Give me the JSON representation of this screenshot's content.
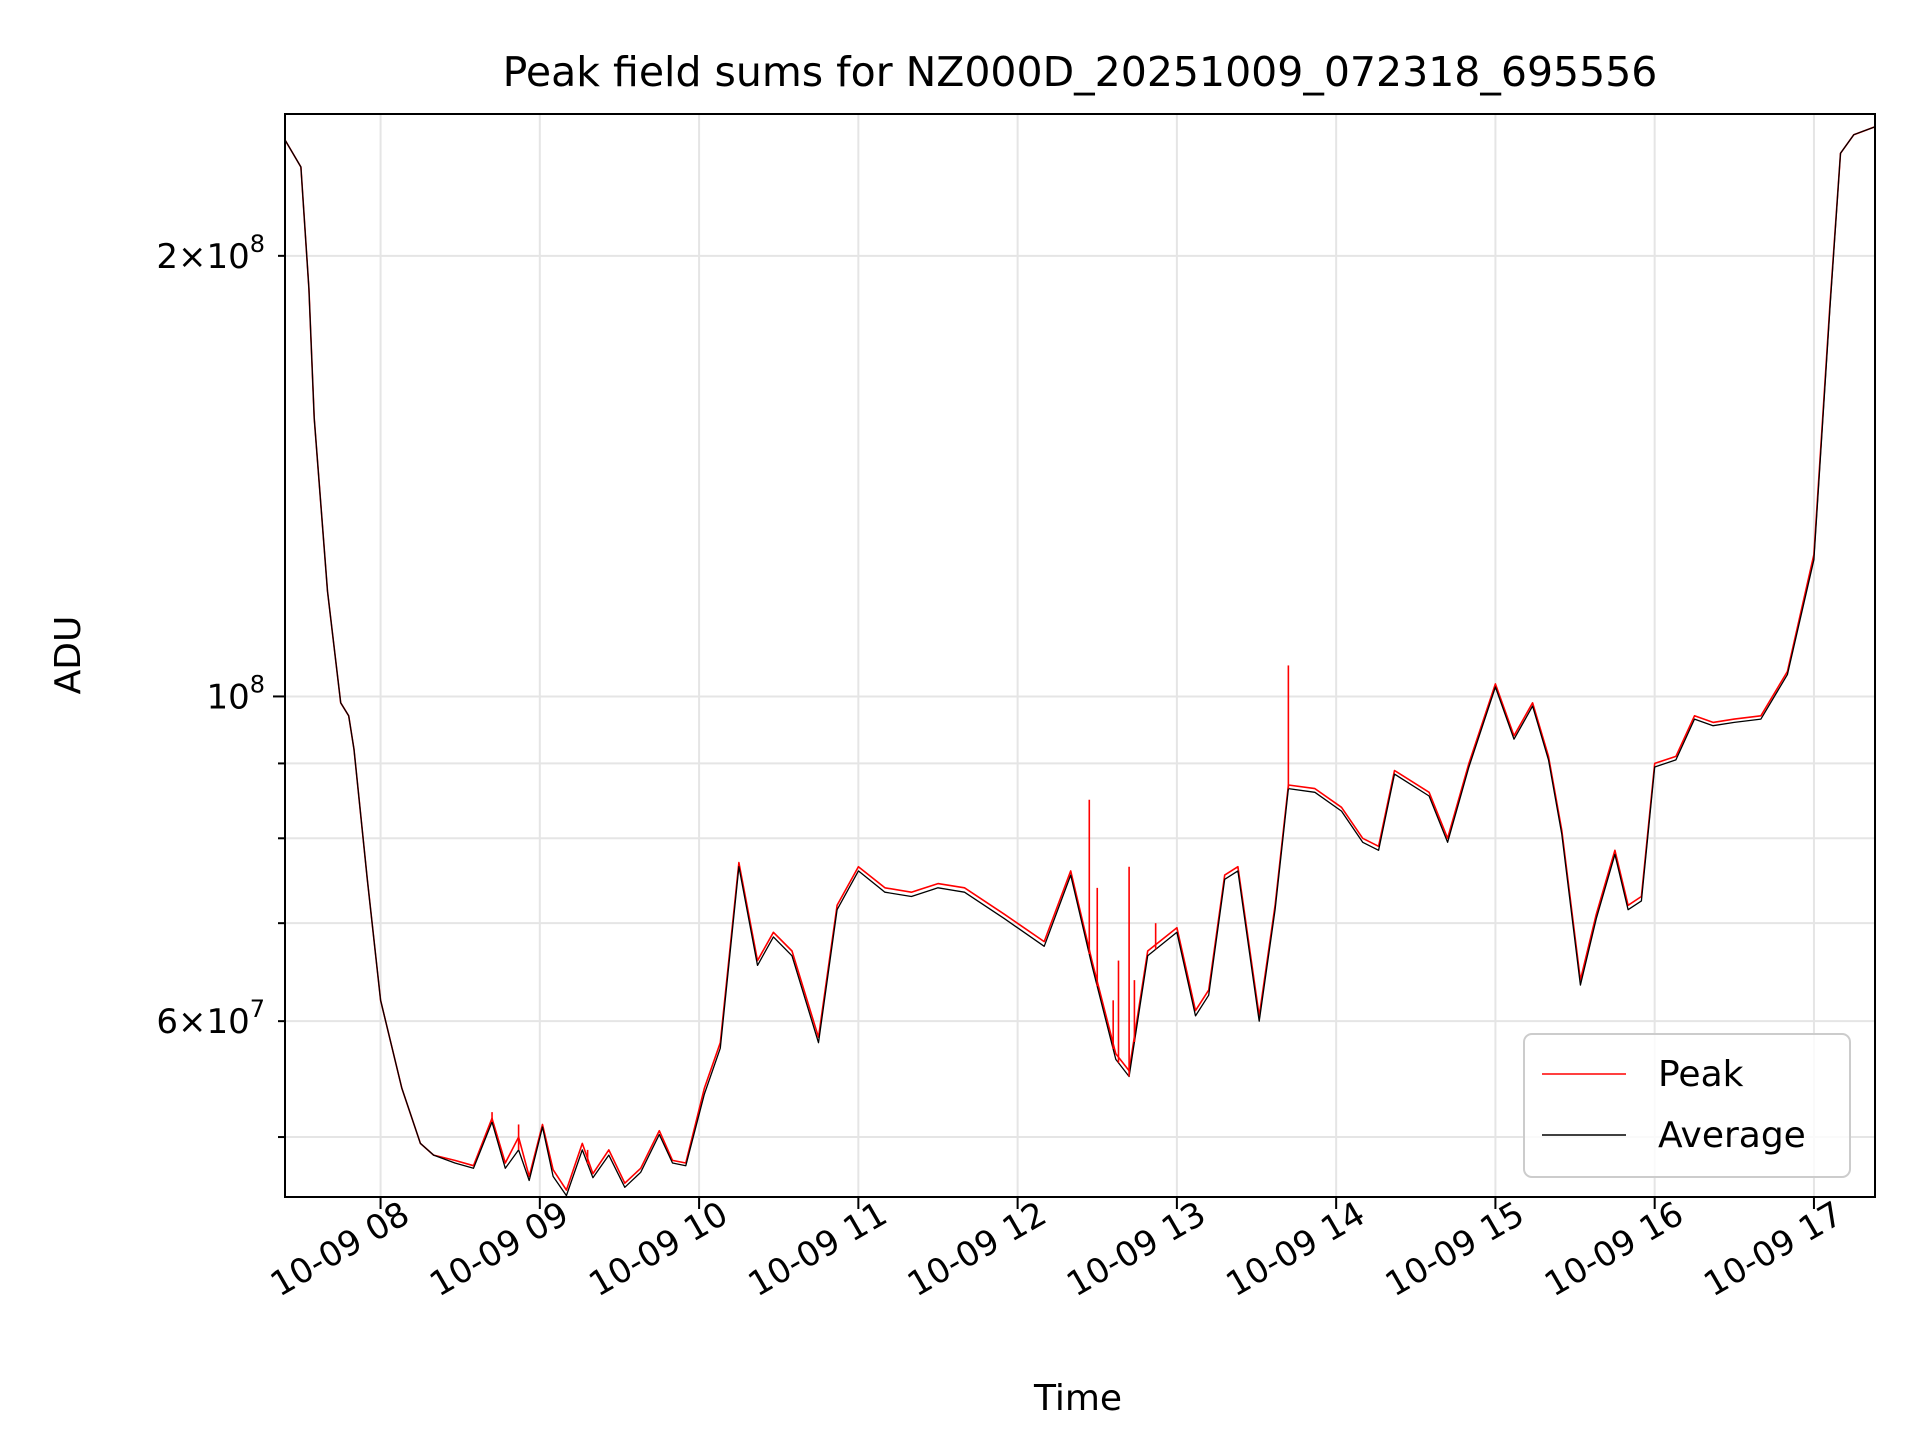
{
  "chart_data": {
    "type": "line",
    "title": "Peak field sums for NZ000D_20251009_072318_695556",
    "xlabel": "Time",
    "ylabel": "ADU",
    "yscale": "log",
    "xlim": [
      "2025-10-09T07:24",
      "2025-10-09T17:23"
    ],
    "ylim": [
      45500000,
      250000000
    ],
    "grid": true,
    "legend_position": "lower-right",
    "x_ticks": [
      {
        "t": "2025-10-09T08:00",
        "label": "10-09 08"
      },
      {
        "t": "2025-10-09T09:00",
        "label": "10-09 09"
      },
      {
        "t": "2025-10-09T10:00",
        "label": "10-09 10"
      },
      {
        "t": "2025-10-09T11:00",
        "label": "10-09 11"
      },
      {
        "t": "2025-10-09T12:00",
        "label": "10-09 12"
      },
      {
        "t": "2025-10-09T13:00",
        "label": "10-09 13"
      },
      {
        "t": "2025-10-09T14:00",
        "label": "10-09 14"
      },
      {
        "t": "2025-10-09T15:00",
        "label": "10-09 15"
      },
      {
        "t": "2025-10-09T16:00",
        "label": "10-09 16"
      },
      {
        "t": "2025-10-09T17:00",
        "label": "10-09 17"
      }
    ],
    "y_major_ticks": [
      {
        "value": 100000000,
        "mantissa": "",
        "exponent": "8"
      }
    ],
    "y_minor_ticks": [
      {
        "value": 50000000,
        "mantissa": "",
        "exponent": ""
      },
      {
        "value": 60000000,
        "mantissa": "6",
        "exponent": "7"
      },
      {
        "value": 70000000,
        "mantissa": "",
        "exponent": ""
      },
      {
        "value": 80000000,
        "mantissa": "",
        "exponent": ""
      },
      {
        "value": 90000000,
        "mantissa": "",
        "exponent": ""
      },
      {
        "value": 200000000,
        "mantissa": "2",
        "exponent": "8"
      }
    ],
    "series": [
      {
        "name": "Peak",
        "color": "#ff0000",
        "x": [
          "2025-10-09T07:24",
          "2025-10-09T07:30",
          "2025-10-09T07:33",
          "2025-10-09T07:35",
          "2025-10-09T07:40",
          "2025-10-09T07:45",
          "2025-10-09T07:48",
          "2025-10-09T07:50",
          "2025-10-09T07:55",
          "2025-10-09T08:00",
          "2025-10-09T08:08",
          "2025-10-09T08:15",
          "2025-10-09T08:20",
          "2025-10-09T08:28",
          "2025-10-09T08:35",
          "2025-10-09T08:42",
          "2025-10-09T08:47",
          "2025-10-09T08:52",
          "2025-10-09T08:56",
          "2025-10-09T09:01",
          "2025-10-09T09:05",
          "2025-10-09T09:10",
          "2025-10-09T09:16",
          "2025-10-09T09:20",
          "2025-10-09T09:26",
          "2025-10-09T09:32",
          "2025-10-09T09:38",
          "2025-10-09T09:45",
          "2025-10-09T09:50",
          "2025-10-09T09:55",
          "2025-10-09T10:02",
          "2025-10-09T10:08",
          "2025-10-09T10:15",
          "2025-10-09T10:22",
          "2025-10-09T10:28",
          "2025-10-09T10:35",
          "2025-10-09T10:45",
          "2025-10-09T10:52",
          "2025-10-09T11:00",
          "2025-10-09T11:10",
          "2025-10-09T11:20",
          "2025-10-09T11:30",
          "2025-10-09T11:40",
          "2025-10-09T11:55",
          "2025-10-09T12:10",
          "2025-10-09T12:20",
          "2025-10-09T12:28",
          "2025-10-09T12:37",
          "2025-10-09T12:42",
          "2025-10-09T12:49",
          "2025-10-09T13:00",
          "2025-10-09T13:07",
          "2025-10-09T13:12",
          "2025-10-09T13:18",
          "2025-10-09T13:23",
          "2025-10-09T13:31",
          "2025-10-09T13:37",
          "2025-10-09T13:42",
          "2025-10-09T13:52",
          "2025-10-09T14:02",
          "2025-10-09T14:10",
          "2025-10-09T14:16",
          "2025-10-09T14:22",
          "2025-10-09T14:35",
          "2025-10-09T14:42",
          "2025-10-09T14:50",
          "2025-10-09T15:00",
          "2025-10-09T15:07",
          "2025-10-09T15:14",
          "2025-10-09T15:20",
          "2025-10-09T15:25",
          "2025-10-09T15:32",
          "2025-10-09T15:38",
          "2025-10-09T15:45",
          "2025-10-09T15:50",
          "2025-10-09T15:55",
          "2025-10-09T16:00",
          "2025-10-09T16:08",
          "2025-10-09T16:15",
          "2025-10-09T16:22",
          "2025-10-09T16:30",
          "2025-10-09T16:40",
          "2025-10-09T16:50",
          "2025-10-09T17:00",
          "2025-10-09T17:06",
          "2025-10-09T17:10",
          "2025-10-09T17:15",
          "2025-10-09T17:23"
        ],
        "values": [
          240000000,
          230000000,
          190000000,
          155000000,
          118000000,
          99000000,
          97000000,
          92000000,
          75000000,
          62000000,
          54000000,
          49500000,
          48600000,
          48200000,
          47800000,
          51500000,
          48000000,
          50000000,
          47000000,
          51000000,
          47500000,
          46000000,
          49500000,
          47200000,
          49000000,
          46500000,
          47600000,
          50500000,
          48200000,
          48000000,
          54000000,
          58000000,
          77000000,
          66000000,
          69000000,
          67000000,
          58500000,
          72000000,
          76500000,
          74000000,
          73500000,
          74500000,
          74000000,
          71000000,
          68000000,
          76000000,
          66000000,
          57000000,
          55500000,
          67000000,
          69500000,
          61000000,
          63000000,
          75500000,
          76500000,
          60500000,
          72000000,
          87000000,
          86500000,
          84000000,
          80000000,
          79000000,
          89000000,
          86000000,
          80000000,
          90000000,
          102000000,
          94000000,
          99000000,
          91000000,
          81000000,
          64000000,
          71000000,
          78500000,
          72000000,
          73000000,
          90000000,
          91000000,
          97000000,
          96000000,
          96500000,
          97000000,
          104000000,
          125000000,
          185000000,
          235000000,
          242000000,
          245000000
        ]
      },
      {
        "name": "Average",
        "color": "#000000",
        "x": [
          "2025-10-09T07:24",
          "2025-10-09T07:30",
          "2025-10-09T07:33",
          "2025-10-09T07:35",
          "2025-10-09T07:40",
          "2025-10-09T07:45",
          "2025-10-09T07:48",
          "2025-10-09T07:50",
          "2025-10-09T07:55",
          "2025-10-09T08:00",
          "2025-10-09T08:08",
          "2025-10-09T08:15",
          "2025-10-09T08:20",
          "2025-10-09T08:28",
          "2025-10-09T08:35",
          "2025-10-09T08:42",
          "2025-10-09T08:47",
          "2025-10-09T08:52",
          "2025-10-09T08:56",
          "2025-10-09T09:01",
          "2025-10-09T09:05",
          "2025-10-09T09:10",
          "2025-10-09T09:16",
          "2025-10-09T09:20",
          "2025-10-09T09:26",
          "2025-10-09T09:32",
          "2025-10-09T09:38",
          "2025-10-09T09:45",
          "2025-10-09T09:50",
          "2025-10-09T09:55",
          "2025-10-09T10:02",
          "2025-10-09T10:08",
          "2025-10-09T10:15",
          "2025-10-09T10:22",
          "2025-10-09T10:28",
          "2025-10-09T10:35",
          "2025-10-09T10:45",
          "2025-10-09T10:52",
          "2025-10-09T11:00",
          "2025-10-09T11:10",
          "2025-10-09T11:20",
          "2025-10-09T11:30",
          "2025-10-09T11:40",
          "2025-10-09T11:55",
          "2025-10-09T12:10",
          "2025-10-09T12:20",
          "2025-10-09T12:28",
          "2025-10-09T12:37",
          "2025-10-09T12:42",
          "2025-10-09T12:49",
          "2025-10-09T13:00",
          "2025-10-09T13:07",
          "2025-10-09T13:12",
          "2025-10-09T13:18",
          "2025-10-09T13:23",
          "2025-10-09T13:31",
          "2025-10-09T13:37",
          "2025-10-09T13:42",
          "2025-10-09T13:52",
          "2025-10-09T14:02",
          "2025-10-09T14:10",
          "2025-10-09T14:16",
          "2025-10-09T14:22",
          "2025-10-09T14:35",
          "2025-10-09T14:42",
          "2025-10-09T14:50",
          "2025-10-09T15:00",
          "2025-10-09T15:07",
          "2025-10-09T15:14",
          "2025-10-09T15:20",
          "2025-10-09T15:25",
          "2025-10-09T15:32",
          "2025-10-09T15:38",
          "2025-10-09T15:45",
          "2025-10-09T15:50",
          "2025-10-09T15:55",
          "2025-10-09T16:00",
          "2025-10-09T16:08",
          "2025-10-09T16:15",
          "2025-10-09T16:22",
          "2025-10-09T16:30",
          "2025-10-09T16:40",
          "2025-10-09T16:50",
          "2025-10-09T17:00",
          "2025-10-09T17:06",
          "2025-10-09T17:10",
          "2025-10-09T17:15",
          "2025-10-09T17:23"
        ],
        "values": [
          240000000,
          230000000,
          190000000,
          155000000,
          118000000,
          99000000,
          97000000,
          92000000,
          75000000,
          62000000,
          54000000,
          49500000,
          48600000,
          48000000,
          47600000,
          51200000,
          47600000,
          49000000,
          46700000,
          50800000,
          47000000,
          45600000,
          49000000,
          46900000,
          48600000,
          46200000,
          47300000,
          50200000,
          48000000,
          47800000,
          53500000,
          57500000,
          76500000,
          65500000,
          68500000,
          66500000,
          58000000,
          71500000,
          76000000,
          73500000,
          73000000,
          74000000,
          73500000,
          70500000,
          67500000,
          75500000,
          65500000,
          56500000,
          55000000,
          66500000,
          69000000,
          60500000,
          62500000,
          75000000,
          76000000,
          60000000,
          71500000,
          86500000,
          86000000,
          83500000,
          79500000,
          78500000,
          88500000,
          85500000,
          79500000,
          89500000,
          101500000,
          93500000,
          98500000,
          90500000,
          80500000,
          63500000,
          70500000,
          78000000,
          71500000,
          72500000,
          89500000,
          90500000,
          96500000,
          95500000,
          96000000,
          96500000,
          103500000,
          124000000,
          184000000,
          235000000,
          242000000,
          245000000
        ]
      }
    ],
    "spikes": [
      {
        "x": "2025-10-09T08:42",
        "peak": 52000000
      },
      {
        "x": "2025-10-09T08:52",
        "peak": 51000000
      },
      {
        "x": "2025-10-09T09:18",
        "peak": 49000000
      },
      {
        "x": "2025-10-09T12:27",
        "peak": 85000000
      },
      {
        "x": "2025-10-09T12:30",
        "peak": 74000000
      },
      {
        "x": "2025-10-09T12:36",
        "peak": 62000000
      },
      {
        "x": "2025-10-09T12:38",
        "peak": 66000000
      },
      {
        "x": "2025-10-09T12:42",
        "peak": 76500000
      },
      {
        "x": "2025-10-09T12:44",
        "peak": 64000000
      },
      {
        "x": "2025-10-09T12:52",
        "peak": 70000000
      },
      {
        "x": "2025-10-09T13:42",
        "peak": 105000000
      }
    ]
  }
}
